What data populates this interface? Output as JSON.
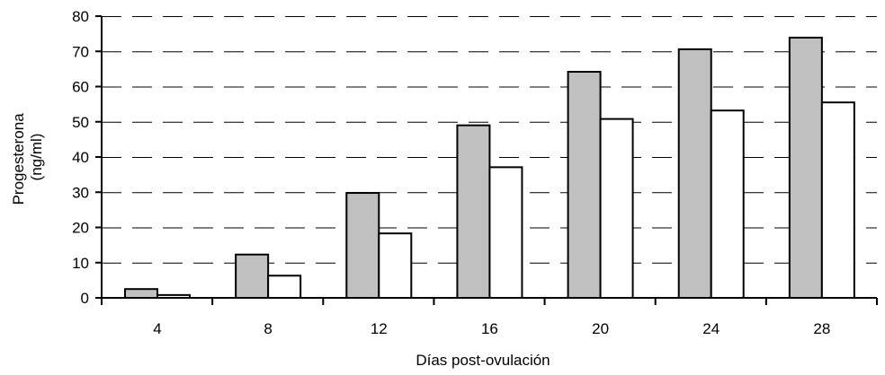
{
  "chart_data": {
    "type": "bar",
    "title": "",
    "xlabel": "Días post-ovulación",
    "ylabel": [
      "Progesterona",
      "(ng/ml)"
    ],
    "categories": [
      "4",
      "8",
      "12",
      "16",
      "20",
      "24",
      "28"
    ],
    "series": [
      {
        "values": [
          2.5,
          12.3,
          29.8,
          49.0,
          64.2,
          70.6,
          73.9
        ],
        "color": "#c0c0c0"
      },
      {
        "values": [
          0.8,
          6.3,
          18.3,
          37.1,
          50.8,
          53.2,
          55.5
        ],
        "color": "#ffffff"
      }
    ],
    "ylim": [
      0,
      80
    ],
    "yticks": [
      0,
      10,
      20,
      30,
      40,
      50,
      60,
      70,
      80
    ],
    "grid": {
      "y": true,
      "style": "dashed"
    },
    "legend": "none"
  }
}
